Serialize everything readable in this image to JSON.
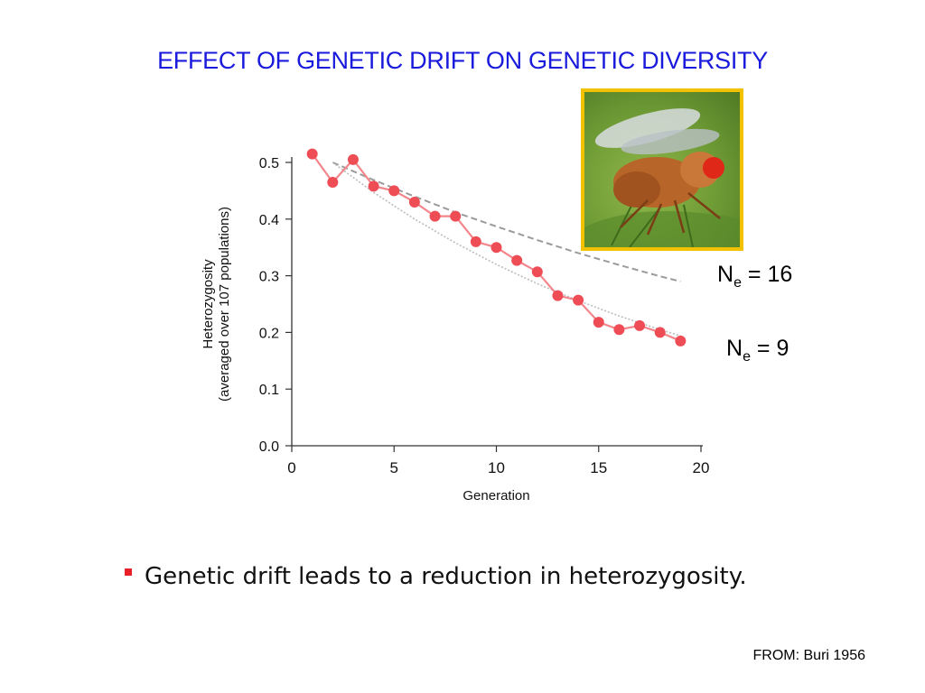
{
  "title": "EFFECT OF GENETIC DRIFT ON GENETIC DIVERSITY",
  "bullet": "Genetic drift leads to a reduction in heterozygosity.",
  "source": "FROM: Buri 1956",
  "legend": {
    "ne16_main": "N",
    "ne16_sub": "e",
    "ne16_rest": " = 16",
    "ne9_main": "N",
    "ne9_sub": "e",
    "ne9_rest": " = 9"
  },
  "colors": {
    "title": "#1a1adc",
    "observed": "#ee4d55",
    "bullet": "#e8202a",
    "photo_border": "#f2c200"
  },
  "chart_data": {
    "type": "line",
    "xlabel": "Generation",
    "ylabel": [
      "Heterozygosity",
      "(averaged over 107 populations)"
    ],
    "xlim": [
      0,
      20
    ],
    "ylim": [
      0,
      0.5
    ],
    "x_ticks": [
      0,
      5,
      10,
      15,
      20
    ],
    "y_ticks": [
      0.0,
      0.1,
      0.2,
      0.3,
      0.4,
      0.5
    ],
    "y_tick_labels": [
      "0.0",
      "0.1",
      "0.2",
      "0.3",
      "0.4",
      "0.5"
    ],
    "grid": false,
    "series": [
      {
        "style": "observed",
        "x": [
          1,
          2,
          3,
          4,
          5,
          6,
          7,
          8,
          9,
          10,
          11,
          12,
          13,
          14,
          15,
          16,
          17,
          18,
          19
        ],
        "y": [
          0.515,
          0.465,
          0.505,
          0.458,
          0.45,
          0.43,
          0.405,
          0.405,
          0.36,
          0.35,
          0.327,
          0.307,
          0.265,
          0.257,
          0.218,
          0.205,
          0.212,
          0.2,
          0.185
        ]
      },
      {
        "style": "expected-ne16",
        "x": [
          2,
          4,
          6,
          8,
          10,
          12,
          14,
          16,
          18,
          19
        ],
        "y": [
          0.5,
          0.469,
          0.44,
          0.412,
          0.387,
          0.363,
          0.34,
          0.319,
          0.299,
          0.29
        ]
      },
      {
        "style": "expected-ne9",
        "x": [
          2,
          4,
          6,
          8,
          10,
          12,
          14,
          16,
          18,
          19
        ],
        "y": [
          0.5,
          0.447,
          0.4,
          0.358,
          0.32,
          0.286,
          0.256,
          0.229,
          0.205,
          0.194
        ]
      }
    ]
  }
}
